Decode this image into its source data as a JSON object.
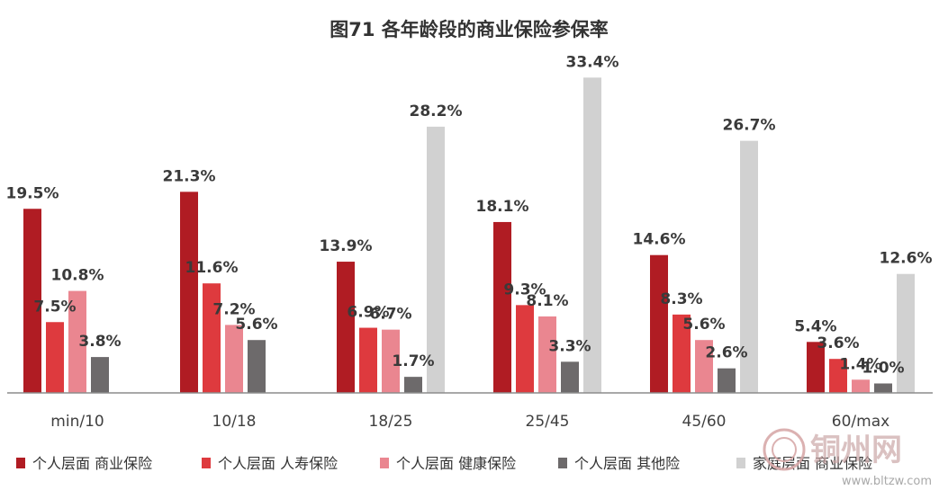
{
  "chart_data": {
    "type": "bar",
    "title": "图71  各年龄段的商业保险参保率",
    "categories": [
      "min/10",
      "10/18",
      "18/25",
      "25/45",
      "45/60",
      "60/max"
    ],
    "ylim": [
      0,
      36
    ],
    "unit": "%",
    "grid": false,
    "legend_position": "bottom",
    "series": [
      {
        "name": "个人层面 商业保险",
        "color": "#b01c23",
        "values": [
          19.5,
          21.3,
          13.9,
          18.1,
          14.6,
          5.4
        ],
        "labels": [
          "19.5%",
          "21.3%",
          "13.9%",
          "18.1%",
          "14.6%",
          "5.4%"
        ]
      },
      {
        "name": "个人层面 人寿保险",
        "color": "#de3a3e",
        "values": [
          7.5,
          11.6,
          6.9,
          9.3,
          8.3,
          3.6
        ],
        "labels": [
          "7.5%",
          "11.6%",
          "6.9%",
          "9.3%",
          "8.3%",
          "3.6%"
        ]
      },
      {
        "name": "个人层面 健康保险",
        "color": "#ea8690",
        "values": [
          10.8,
          7.2,
          6.7,
          8.1,
          5.6,
          1.4
        ],
        "labels": [
          "10.8%",
          "7.2%",
          "6.7%",
          "8.1%",
          "5.6%",
          "1.4%"
        ]
      },
      {
        "name": "个人层面 其他险",
        "color": "#6d6a6b",
        "values": [
          3.8,
          5.6,
          1.7,
          3.3,
          2.6,
          1.0
        ],
        "labels": [
          "3.8%",
          "5.6%",
          "1.7%",
          "3.3%",
          "2.6%",
          "1.0%"
        ]
      },
      {
        "name": "家庭层面 商业保险",
        "color": "#d1d1d1",
        "values": [
          null,
          null,
          28.2,
          33.4,
          26.7,
          12.6
        ],
        "labels": [
          "",
          "",
          "28.2%",
          "33.4%",
          "26.7%",
          "12.6%"
        ]
      }
    ]
  },
  "watermark": {
    "text": "铜州网",
    "url": "www.bltzw.com"
  }
}
